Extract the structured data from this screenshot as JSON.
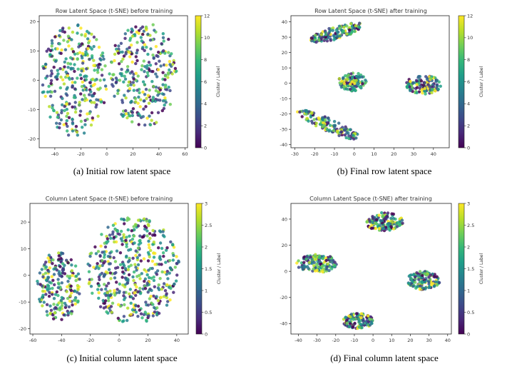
{
  "chart_data": [
    {
      "type": "scatter",
      "title": "Row Latent Space (t-SNE) before training",
      "caption": "(a) Initial row latent space",
      "xlim": [
        -52,
        62
      ],
      "ylim": [
        -23,
        22
      ],
      "xticks": [
        -40,
        -20,
        0,
        20,
        40,
        60
      ],
      "yticks": [
        -20,
        -10,
        0,
        10,
        20
      ],
      "colorbar": {
        "label": "Cluster / Label",
        "min": 0,
        "max": 12,
        "ticks": [
          0,
          2,
          4,
          6,
          8,
          10,
          12
        ]
      },
      "clusters": [
        {
          "cx": -25,
          "cy": 0,
          "rx": 25,
          "ry": 19,
          "n": 320
        },
        {
          "cx": 28,
          "cy": 2,
          "rx": 26,
          "ry": 18,
          "n": 300
        }
      ],
      "grid": false
    },
    {
      "type": "scatter",
      "title": "Row Latent Space (t-SNE) after training",
      "caption": "(b) Final row latent space",
      "xlim": [
        -32,
        48
      ],
      "ylim": [
        -42,
        44
      ],
      "xticks": [
        -30,
        -20,
        -10,
        0,
        10,
        20,
        30,
        40
      ],
      "yticks": [
        -40,
        -30,
        -20,
        -10,
        0,
        10,
        20,
        30,
        40
      ],
      "colorbar": {
        "label": "Cluster / Label",
        "min": 0,
        "max": 12,
        "ticks": [
          0,
          2,
          4,
          6,
          8,
          10,
          12
        ]
      },
      "clusters": [
        {
          "cx": -9,
          "cy": 33,
          "rx": 14,
          "ry": 4,
          "angle": 22,
          "n": 140
        },
        {
          "cx": -1,
          "cy": 1,
          "rx": 7,
          "ry": 6,
          "n": 130
        },
        {
          "cx": 35,
          "cy": -1,
          "rx": 9,
          "ry": 6,
          "n": 130
        },
        {
          "cx": -13,
          "cy": -27,
          "rx": 18,
          "ry": 4,
          "angle": -30,
          "n": 150
        }
      ],
      "grid": false
    },
    {
      "type": "scatter",
      "title": "Column Latent Space (t-SNE) before training",
      "caption": "(c) Initial column latent space",
      "xlim": [
        -62,
        48
      ],
      "ylim": [
        -22,
        27
      ],
      "xticks": [
        -60,
        -40,
        -20,
        0,
        20,
        40
      ],
      "yticks": [
        -20,
        -10,
        0,
        10,
        20
      ],
      "colorbar": {
        "label": "Cluster / Label",
        "min": 0.0,
        "max": 3.0,
        "ticks": [
          0.0,
          0.5,
          1.0,
          1.5,
          2.0,
          2.5,
          3.0
        ]
      },
      "clusters": [
        {
          "cx": -42,
          "cy": -4,
          "rx": 15,
          "ry": 13,
          "n": 210
        },
        {
          "cx": 10,
          "cy": 2,
          "rx": 32,
          "ry": 20,
          "n": 480
        }
      ],
      "grid": false
    },
    {
      "type": "scatter",
      "title": "Column Latent Space (t-SNE) after training",
      "caption": "(d) Final column latent space",
      "xlim": [
        -44,
        42
      ],
      "ylim": [
        -48,
        52
      ],
      "xticks": [
        -40,
        -30,
        -20,
        -10,
        0,
        10,
        20,
        30,
        40
      ],
      "yticks": [
        -40,
        -20,
        0,
        20,
        40
      ],
      "colorbar": {
        "label": "Cluster / Label",
        "min": 0.0,
        "max": 3.0,
        "ticks": [
          0.0,
          0.5,
          1.0,
          1.5,
          2.0,
          2.5,
          3.0
        ]
      },
      "clusters": [
        {
          "cx": 6,
          "cy": 38,
          "rx": 10,
          "ry": 7,
          "n": 140
        },
        {
          "cx": -30,
          "cy": 6,
          "rx": 11,
          "ry": 7,
          "n": 140
        },
        {
          "cx": 27,
          "cy": -7,
          "rx": 9,
          "ry": 7,
          "n": 140
        },
        {
          "cx": -8,
          "cy": -38,
          "rx": 8,
          "ry": 6,
          "n": 120
        }
      ],
      "grid": false
    }
  ],
  "colors": {
    "viridis": [
      "#440154",
      "#482878",
      "#3e4989",
      "#31688e",
      "#26828e",
      "#1f9e89",
      "#35b779",
      "#6ece58",
      "#b5de2b",
      "#fde725"
    ]
  }
}
